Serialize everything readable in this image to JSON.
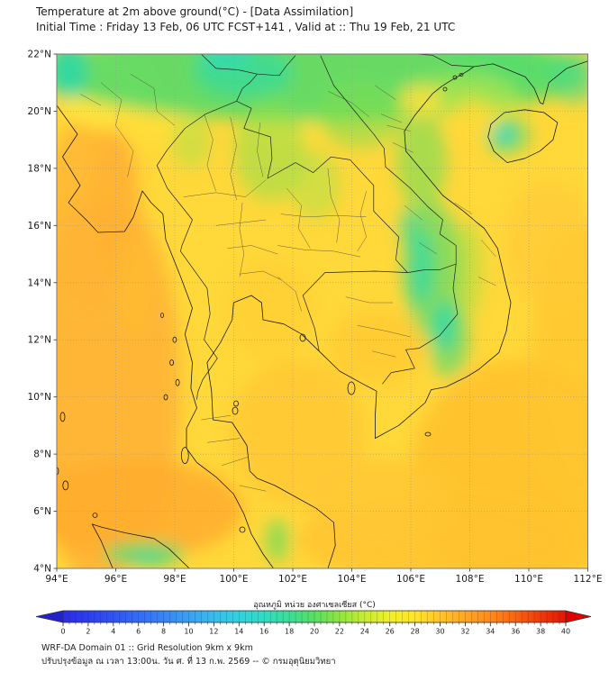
{
  "header": {
    "title_line1": "Temperature at 2m above ground(°C) - [Data Assimilation]",
    "title_line2": "Initial Time : Friday 13 Feb, 06 UTC FCST+141 , Valid at :: Thu 19 Feb, 21 UTC"
  },
  "map": {
    "lat_labels": [
      "22°N",
      "20°N",
      "18°N",
      "16°N",
      "14°N",
      "12°N",
      "10°N",
      "8°N",
      "6°N",
      "4°N"
    ],
    "lon_labels": [
      "94°E",
      "96°E",
      "98°E",
      "100°E",
      "102°E",
      "104°E",
      "106°E",
      "108°E",
      "110°E",
      "112°E"
    ]
  },
  "colorbar": {
    "label": "อุณหภูมิ หน่วย องศาเซลเซียส (°C)",
    "tick_values": [
      0,
      2,
      4,
      6,
      8,
      10,
      12,
      14,
      16,
      18,
      20,
      22,
      24,
      26,
      28,
      30,
      32,
      34,
      36,
      38,
      40
    ],
    "min_color": "#2222CC",
    "max_color": "#DF0000",
    "stops": [
      [
        0,
        "#2B2BE6"
      ],
      [
        2,
        "#2E3EEE"
      ],
      [
        4,
        "#3054F2"
      ],
      [
        6,
        "#336CF4"
      ],
      [
        8,
        "#3884F4"
      ],
      [
        10,
        "#3AA0F2"
      ],
      [
        12,
        "#38BCEC"
      ],
      [
        14,
        "#32D2DE"
      ],
      [
        16,
        "#30DCC0"
      ],
      [
        18,
        "#3CDE96"
      ],
      [
        20,
        "#55E060"
      ],
      [
        22,
        "#8FE63E"
      ],
      [
        24,
        "#C8EC30"
      ],
      [
        26,
        "#F0F028"
      ],
      [
        28,
        "#FFE428"
      ],
      [
        30,
        "#FFC526"
      ],
      [
        32,
        "#FFA622"
      ],
      [
        34,
        "#FF8A1C"
      ],
      [
        36,
        "#FA6410"
      ],
      [
        38,
        "#EF3A06"
      ],
      [
        40,
        "#E31604"
      ]
    ]
  },
  "footer": {
    "line1": "WRF-DA Domain 01 :: Grid Resolution 9km x 9km",
    "line2": "ปรับปรุงข้อมูล ณ เวลา 13:00น. วัน ศ. ที่ 13 ก.พ. 2569 -- © กรมอุตุนิยมวิทยา"
  },
  "chart_data": {
    "type": "heatmap",
    "title": "Temperature at 2m above ground (°C) - Data Assimilation",
    "lon_range_deg_e": [
      94,
      112
    ],
    "lat_range_deg_n": [
      4,
      22
    ],
    "grid_step_deg": 2,
    "colorbar_range_c": [
      0,
      40
    ],
    "colorbar_tick_step_c": 2,
    "features": [
      {
        "region": "Andaman Sea / Bay of Bengal (west of map)",
        "approx_temp_c": 30
      },
      {
        "region": "Myanmar coastal lowland streak",
        "approx_temp_c": 30
      },
      {
        "region": "Thailand interior plains",
        "approx_temp_c": 27
      },
      {
        "region": "Northern highlands band (S. China / N. Laos / N. Vietnam)",
        "approx_temp_c": 21
      },
      {
        "region": "Annamite Range (Laos-Vietnam border)",
        "approx_temp_c": 17
      },
      {
        "region": "Hainan island interior cool spot",
        "approx_temp_c": 18
      },
      {
        "region": "Gulf of Thailand",
        "approx_temp_c": 29
      },
      {
        "region": "South China Sea (southeast)",
        "approx_temp_c": 29
      },
      {
        "region": "Sumatra highlands (bottom left)",
        "approx_temp_c": 20
      },
      {
        "region": "Malay peninsula range spot",
        "approx_temp_c": 23
      }
    ]
  }
}
